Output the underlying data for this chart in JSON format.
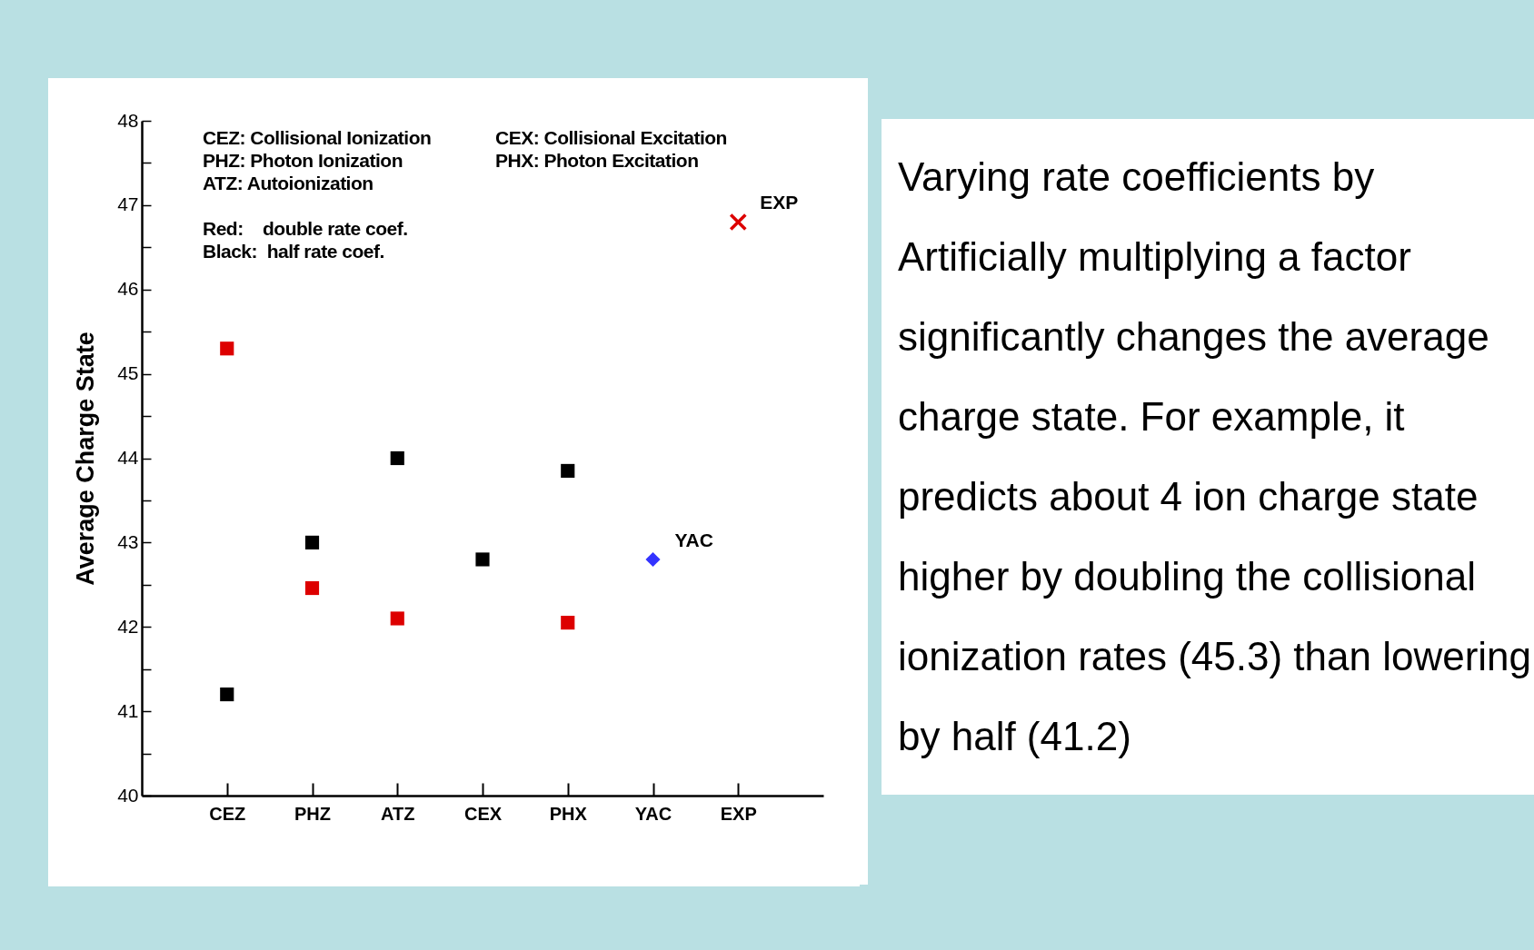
{
  "chart_data": {
    "type": "scatter",
    "ylabel": "Average Charge State",
    "categories": [
      "CEZ",
      "PHZ",
      "ATZ",
      "CEX",
      "PHX",
      "YAC",
      "EXP"
    ],
    "series": [
      {
        "color": "#dd0000",
        "marker": "square",
        "values": [
          45.3,
          42.46,
          42.1,
          null,
          42.05,
          null,
          null
        ]
      },
      {
        "color": "#000000",
        "marker": "square",
        "values": [
          41.2,
          43.0,
          44.0,
          42.8,
          43.85,
          null,
          null
        ]
      },
      {
        "name": "YAC",
        "color": "#3333ff",
        "marker": "diamond",
        "values": [
          null,
          null,
          null,
          null,
          null,
          42.8,
          null
        ]
      },
      {
        "name": "EXP",
        "color": "#dd0000",
        "marker": "cross",
        "values": [
          null,
          null,
          null,
          null,
          null,
          null,
          46.8
        ]
      }
    ],
    "ylim": [
      40,
      48
    ],
    "yticks": [
      40,
      {
        "value": 40.5,
        "label": null
      },
      41,
      {
        "value": 41.5,
        "label": null
      },
      42,
      {
        "value": 42.5,
        "label": null
      },
      43,
      {
        "value": 43.5,
        "label": null
      },
      44,
      {
        "value": 44.5,
        "label": null
      },
      45,
      {
        "value": 45.5,
        "label": null
      },
      46,
      {
        "value": 46.5,
        "label": null
      },
      47,
      {
        "value": 47.5,
        "label": null
      },
      48
    ],
    "grid": false,
    "annotations": [
      "CEZ: Collisional Ionization",
      "PHZ: Photon Ionization",
      "ATZ: Autoionization",
      "CEX: Collisional Excitation",
      "PHX: Photon Excitation",
      "Red:    double rate coef.",
      "Black:  half rate coef.",
      "Varying rate coefficients by Artificially multiplying a factor significantly changes the average charge state. For example, it predicts about 4 ion charge state higher by doubling the collisional ionization rates (45.3) than lowering by half (41.2)"
    ]
  }
}
